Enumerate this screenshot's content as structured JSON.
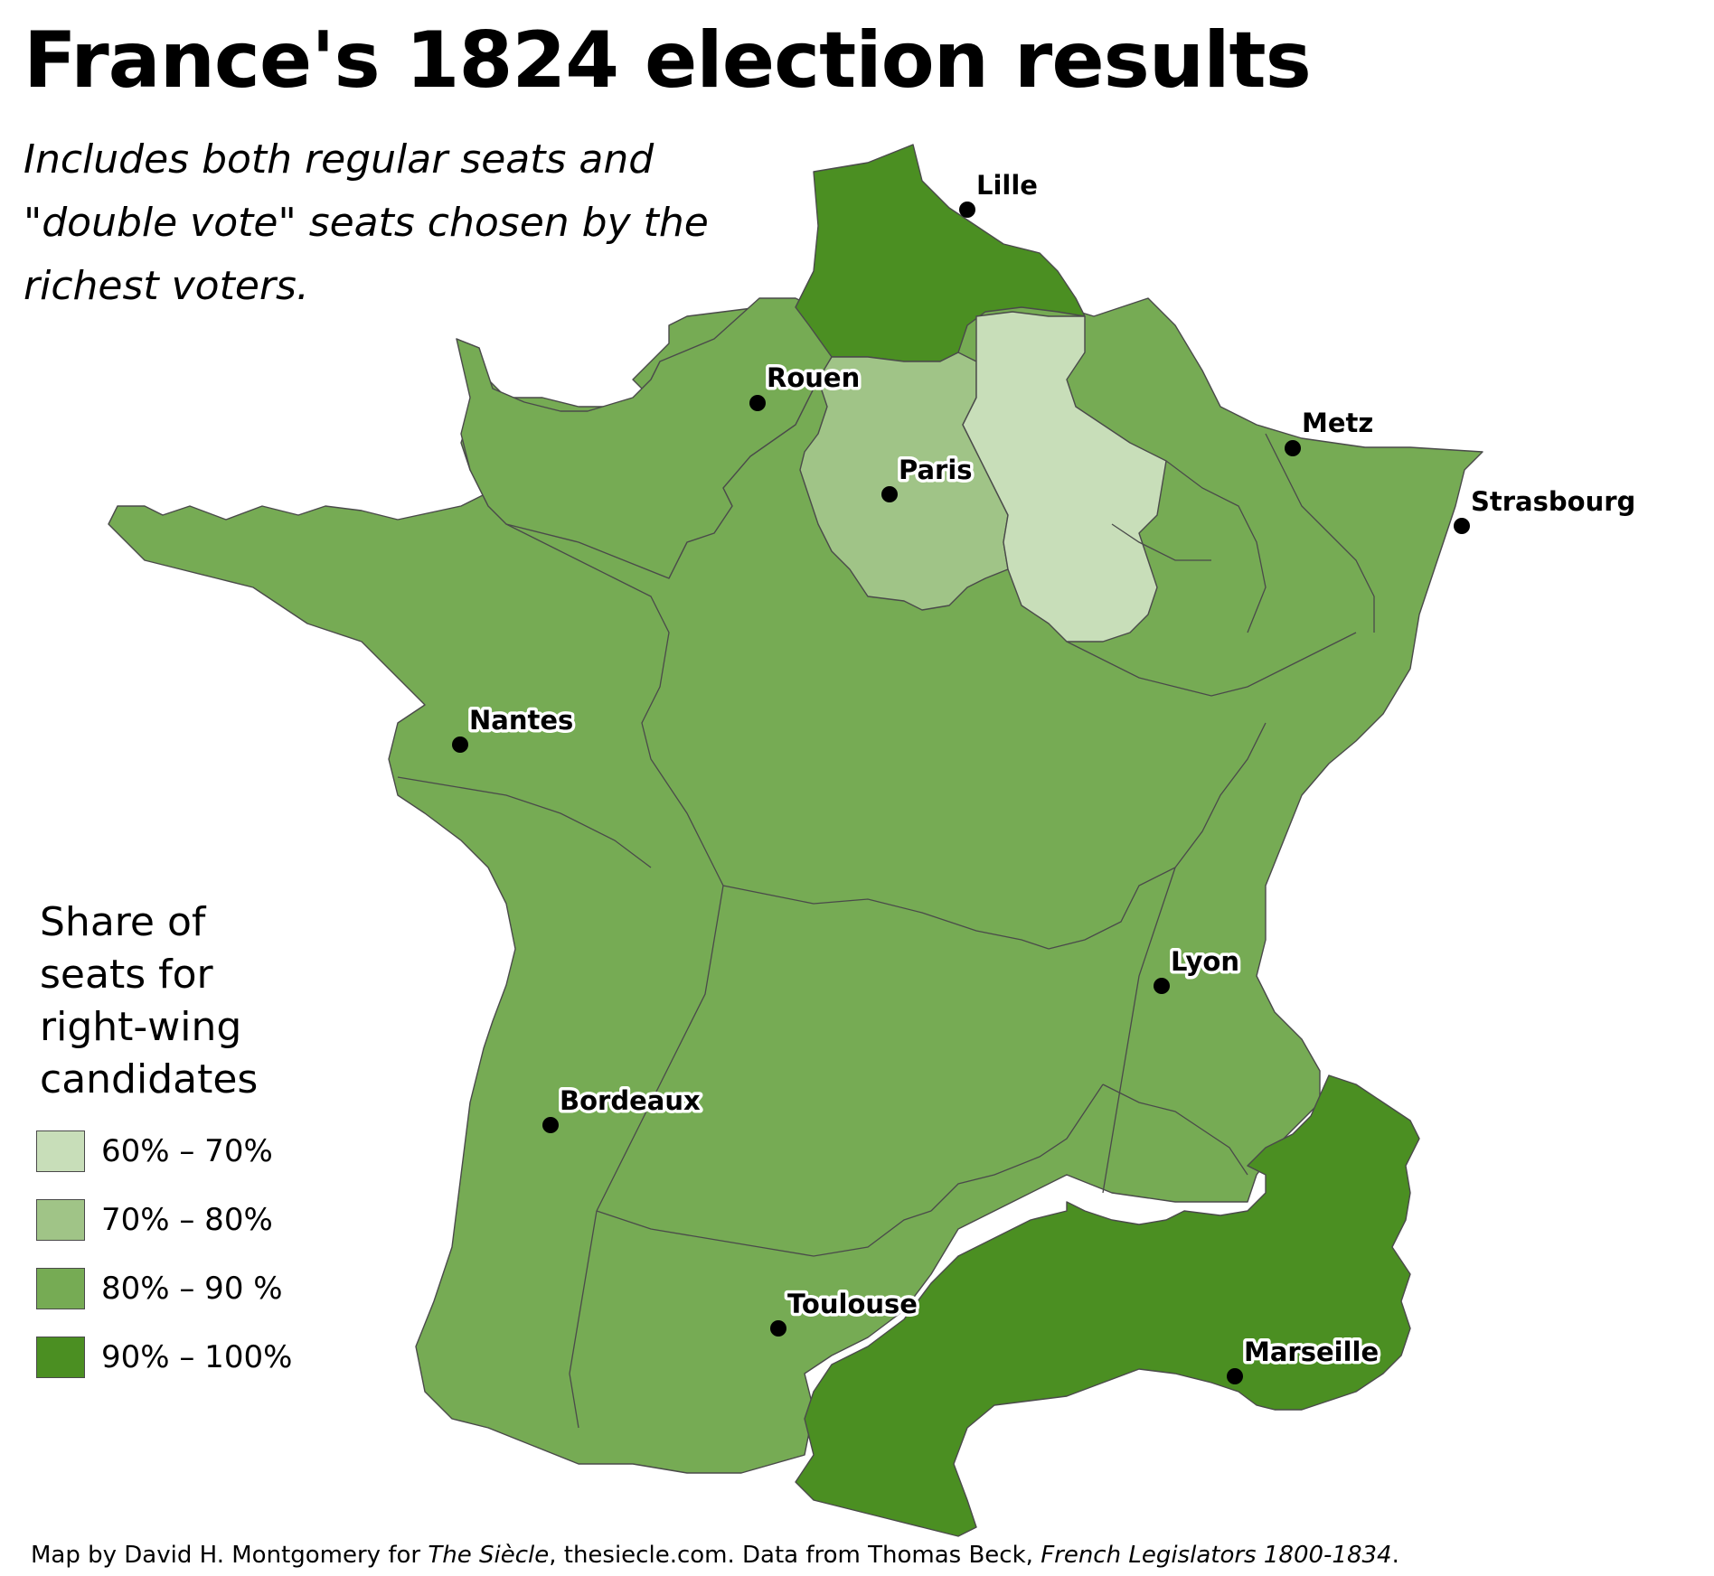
{
  "title": "France's 1824 election results",
  "subtitle": "Includes both regular seats and \"double vote\" seats chosen by the richest voters.",
  "legend": {
    "title": "Share of seats for right-wing candidates",
    "items": [
      {
        "label": "60% – 70%",
        "color": "#c8deb9"
      },
      {
        "label": "70% – 80%",
        "color": "#a0c487"
      },
      {
        "label": "80% – 90 %",
        "color": "#76ab54"
      },
      {
        "label": "90% – 100%",
        "color": "#4b8f22"
      }
    ]
  },
  "cities": [
    {
      "name": "Lille"
    },
    {
      "name": "Rouen"
    },
    {
      "name": "Metz"
    },
    {
      "name": "Paris"
    },
    {
      "name": "Strasbourg"
    },
    {
      "name": "Nantes"
    },
    {
      "name": "Lyon"
    },
    {
      "name": "Bordeaux"
    },
    {
      "name": "Toulouse"
    },
    {
      "name": "Marseille"
    }
  ],
  "credit": {
    "prefix": "Map by David H. Montgomery for ",
    "publication": "The Siècle",
    "middle": ", thesiecle.com. Data from Thomas Beck, ",
    "source": "French Legislators 1800-1834",
    "suffix": "."
  }
}
